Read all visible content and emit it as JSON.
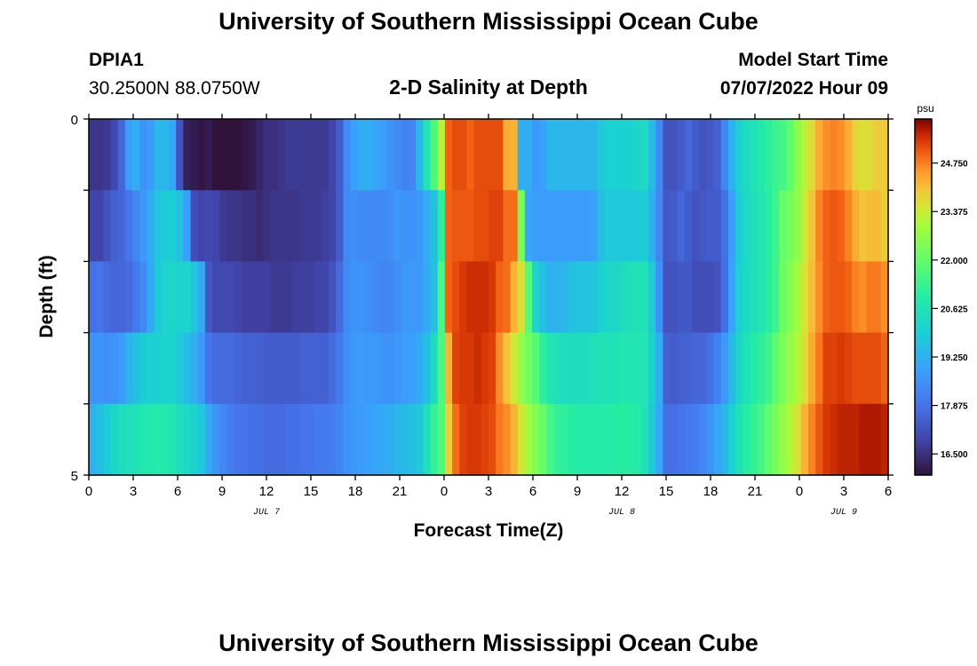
{
  "header": {
    "title": "University of Southern Mississippi Ocean Cube",
    "station": "DPIA1",
    "location": "30.2500N  88.0750W",
    "subtitle": "2-D Salinity at Depth",
    "model_start_label": "Model Start Time",
    "model_start_value": "07/07/2022 Hour 09"
  },
  "footer": {
    "title": "University of Southern Mississippi Ocean Cube"
  },
  "chart_data": {
    "type": "heatmap",
    "title": "2-D Salinity at Depth",
    "xlabel": "Forecast Time(Z)",
    "ylabel": "Depth (ft)",
    "x_ticks": [
      "0",
      "3",
      "6",
      "9",
      "12",
      "15",
      "18",
      "21",
      "0",
      "3",
      "6",
      "9",
      "12",
      "15",
      "18",
      "21",
      "0",
      "3",
      "6"
    ],
    "x_tick_hours": [
      0,
      3,
      6,
      9,
      12,
      15,
      18,
      21,
      24,
      27,
      30,
      33,
      36,
      39,
      42,
      45,
      48,
      51,
      54
    ],
    "date_labels": [
      {
        "label": "JUL 7",
        "hour": 12
      },
      {
        "label": "JUL 8",
        "hour": 36
      },
      {
        "label": "JUL 9",
        "hour": 51
      }
    ],
    "xlim": [
      0,
      54
    ],
    "y_ticks": [
      "0",
      "5"
    ],
    "ylim": [
      0,
      5
    ],
    "depth_rows": [
      0,
      1,
      2,
      3,
      4,
      5
    ],
    "colorbar": {
      "unit": "psu",
      "ticks": [
        "24.750",
        "23.375",
        "22.000",
        "20.625",
        "19.250",
        "17.875",
        "16.500"
      ],
      "tick_values": [
        24.75,
        23.375,
        22.0,
        20.625,
        19.25,
        17.875,
        16.5
      ],
      "range": [
        15.9,
        26.0
      ]
    },
    "salinity_psu": [
      [
        16.6,
        16.6,
        16.7,
        17.0,
        17.6,
        18.8,
        19.2,
        18.6,
        18.8,
        19.4,
        19.4,
        19.0,
        17.2,
        16.2,
        16.1,
        16.0,
        16.1,
        15.9,
        15.9,
        15.9,
        15.9,
        16.0,
        16.1,
        16.3,
        16.5,
        16.5,
        16.6,
        16.7,
        16.7,
        16.7,
        16.7,
        16.7,
        16.7,
        16.9,
        17.4,
        18.4,
        18.9,
        19.2,
        19.2,
        19.0,
        18.8,
        18.6,
        18.4,
        18.2,
        18.3,
        19.4,
        20.7,
        21.6,
        23.2,
        25.0,
        25.2,
        25.2,
        25.0,
        25.2,
        25.2,
        25.2,
        25.2,
        24.3,
        24.2,
        19.2,
        19.2,
        18.7,
        18.9,
        19.4,
        19.4,
        19.4,
        19.4,
        19.4,
        19.4,
        19.4,
        19.8,
        20.0,
        20.0,
        20.0,
        20.0,
        20.2,
        20.3,
        19.4,
        18.4,
        17.2,
        17.2,
        17.4,
        17.6,
        17.4,
        17.2,
        17.3,
        17.5,
        18.3,
        19.3,
        20.0,
        20.4,
        20.6,
        20.8,
        21.1,
        21.3,
        21.5,
        21.9,
        22.6,
        23.2,
        23.7,
        24.3,
        24.6,
        24.7,
        24.6,
        24.3,
        23.8,
        23.6,
        23.7,
        23.9,
        23.9
      ],
      [
        16.9,
        16.9,
        17.2,
        17.5,
        17.6,
        17.9,
        18.3,
        18.7,
        19.2,
        19.7,
        19.9,
        19.9,
        19.6,
        18.9,
        17.1,
        16.9,
        17.0,
        16.9,
        16.7,
        16.6,
        16.6,
        16.5,
        16.5,
        16.4,
        16.5,
        16.6,
        16.6,
        16.6,
        16.6,
        16.7,
        16.7,
        16.7,
        16.8,
        16.9,
        17.4,
        18.4,
        18.5,
        18.4,
        18.4,
        18.4,
        18.4,
        18.5,
        18.7,
        18.6,
        18.6,
        18.7,
        19.2,
        19.6,
        21.1,
        25.0,
        25.1,
        25.1,
        25.1,
        25.2,
        25.2,
        25.3,
        25.3,
        24.9,
        24.9,
        22.3,
        19.0,
        18.8,
        18.8,
        18.8,
        18.8,
        18.8,
        18.8,
        18.8,
        18.8,
        18.9,
        19.6,
        19.8,
        19.8,
        19.8,
        19.8,
        19.8,
        19.9,
        19.2,
        18.3,
        17.3,
        17.4,
        17.6,
        17.4,
        17.2,
        17.3,
        17.4,
        17.4,
        17.8,
        18.9,
        19.9,
        20.3,
        20.5,
        20.7,
        21.0,
        21.4,
        22.0,
        22.3,
        22.6,
        23.3,
        24.0,
        24.7,
        25.0,
        25.1,
        25.0,
        24.7,
        24.3,
        24.0,
        24.1,
        24.1,
        23.9
      ],
      [
        17.8,
        17.9,
        17.7,
        17.6,
        17.6,
        17.7,
        18.0,
        18.4,
        19.1,
        19.8,
        20.1,
        20.2,
        20.1,
        20.1,
        19.8,
        19.1,
        17.3,
        17.0,
        17.0,
        17.0,
        16.9,
        16.8,
        16.8,
        16.8,
        16.8,
        16.7,
        16.7,
        16.7,
        16.8,
        16.8,
        16.8,
        16.9,
        16.9,
        17.2,
        17.7,
        18.4,
        18.6,
        18.6,
        18.5,
        18.4,
        18.3,
        18.3,
        18.5,
        18.7,
        18.7,
        18.7,
        19.1,
        19.6,
        21.6,
        25.0,
        25.2,
        25.4,
        25.5,
        25.5,
        25.5,
        25.4,
        25.0,
        24.9,
        24.2,
        23.6,
        21.8,
        20.1,
        19.6,
        19.3,
        19.3,
        19.4,
        19.6,
        19.7,
        19.7,
        19.7,
        20.0,
        20.2,
        20.2,
        20.4,
        20.5,
        20.6,
        20.6,
        19.8,
        18.6,
        17.2,
        17.2,
        17.3,
        17.3,
        17.1,
        17.1,
        17.1,
        17.2,
        17.8,
        19.0,
        20.0,
        20.3,
        20.5,
        20.7,
        21.0,
        21.4,
        22.1,
        22.5,
        22.9,
        23.5,
        24.1,
        24.6,
        25.0,
        25.1,
        25.1,
        25.0,
        24.7,
        24.6,
        24.8,
        24.8,
        24.6
      ],
      [
        18.6,
        18.6,
        18.5,
        18.6,
        18.8,
        19.3,
        19.6,
        19.9,
        20.0,
        20.0,
        20.1,
        20.1,
        19.8,
        19.5,
        19.2,
        18.7,
        17.9,
        17.7,
        17.7,
        17.7,
        17.6,
        17.5,
        17.5,
        17.5,
        17.4,
        17.4,
        17.4,
        17.4,
        17.4,
        17.5,
        17.5,
        17.5,
        17.5,
        17.7,
        18.0,
        18.5,
        18.7,
        18.8,
        18.7,
        18.7,
        18.6,
        18.6,
        18.7,
        18.8,
        18.9,
        19.1,
        19.6,
        20.3,
        21.6,
        24.2,
        25.3,
        25.4,
        25.4,
        25.5,
        25.4,
        25.3,
        24.6,
        24.0,
        23.5,
        22.7,
        22.2,
        21.8,
        21.1,
        20.7,
        20.5,
        20.4,
        20.4,
        20.4,
        20.4,
        20.5,
        20.6,
        20.6,
        20.6,
        20.7,
        20.7,
        20.7,
        20.7,
        20.0,
        19.2,
        17.5,
        17.4,
        17.5,
        17.5,
        17.6,
        17.6,
        17.8,
        18.2,
        18.7,
        19.5,
        20.2,
        20.6,
        20.9,
        21.1,
        21.4,
        21.9,
        22.4,
        22.7,
        23.1,
        23.6,
        24.3,
        24.8,
        25.3,
        25.3,
        25.4,
        25.3,
        25.2,
        25.2,
        25.2,
        25.2,
        25.0
      ],
      [
        19.3,
        19.6,
        19.9,
        20.2,
        20.4,
        20.5,
        20.6,
        20.8,
        20.8,
        20.9,
        20.8,
        20.7,
        20.5,
        20.3,
        20.1,
        19.8,
        19.1,
        18.6,
        18.3,
        18.1,
        17.9,
        17.9,
        17.8,
        17.8,
        17.7,
        17.7,
        17.7,
        17.8,
        17.8,
        17.9,
        17.9,
        18.0,
        18.0,
        18.1,
        18.3,
        18.6,
        18.7,
        18.8,
        18.9,
        19.0,
        19.1,
        19.2,
        19.4,
        19.5,
        19.6,
        19.8,
        20.5,
        21.2,
        21.7,
        23.8,
        24.9,
        25.3,
        25.4,
        25.4,
        25.3,
        25.2,
        24.8,
        24.6,
        24.2,
        23.5,
        22.9,
        22.5,
        22.0,
        21.5,
        21.2,
        21.1,
        21.0,
        20.9,
        20.9,
        20.9,
        20.9,
        20.9,
        21.0,
        21.0,
        21.0,
        20.9,
        20.6,
        19.8,
        19.0,
        17.8,
        17.8,
        17.9,
        18.0,
        18.1,
        18.3,
        18.6,
        19.0,
        19.4,
        20.0,
        20.6,
        21.0,
        21.2,
        21.5,
        21.9,
        22.3,
        22.7,
        23.1,
        23.6,
        24.2,
        24.7,
        25.1,
        25.4,
        25.5,
        25.6,
        25.6,
        25.6,
        25.7,
        25.7,
        25.7,
        25.6
      ]
    ]
  }
}
